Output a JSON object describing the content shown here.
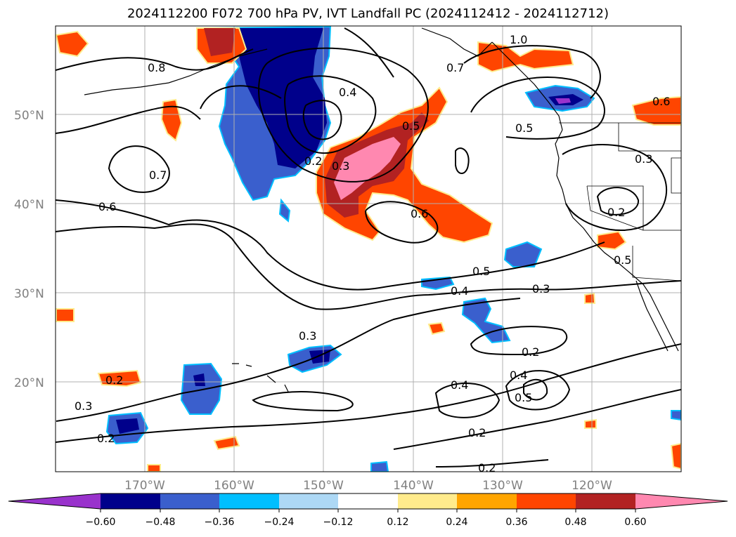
{
  "title": "2024112200 F072 700 hPa PV, IVT Landfall PC (2024112412 - 2024112712)",
  "map": {
    "projection": "cylindrical",
    "lon_range": [
      -180,
      -110
    ],
    "lat_range": [
      10,
      60
    ],
    "lat_ticks": [
      {
        "value": 20,
        "label": "20°N"
      },
      {
        "value": 30,
        "label": "30°N"
      },
      {
        "value": 40,
        "label": "40°N"
      },
      {
        "value": 50,
        "label": "50°N"
      }
    ],
    "lon_ticks": [
      {
        "value": -170,
        "label": "170°W"
      },
      {
        "value": -160,
        "label": "160°W"
      },
      {
        "value": -150,
        "label": "150°W"
      },
      {
        "value": -140,
        "label": "140°W"
      },
      {
        "value": -130,
        "label": "130°W"
      },
      {
        "value": -120,
        "label": "120°W"
      }
    ],
    "gridlines": true,
    "contour_labels": [
      "0.8",
      "0.7",
      "0.6",
      "0.4",
      "0.3",
      "0.2",
      "0.5",
      "0.6",
      "1.0",
      "0.7",
      "0.5",
      "0.3",
      "0.2",
      "0.5",
      "0.4",
      "0.3",
      "0.5",
      "0.2",
      "0.4",
      "0.5",
      "0.2",
      "0.3",
      "0.2",
      "0.2",
      "0.3",
      "0.4",
      "0.2",
      "0.6"
    ]
  },
  "colorbar": {
    "ticks": [
      "−0.60",
      "−0.48",
      "−0.36",
      "−0.24",
      "−0.12",
      "0.12",
      "0.24",
      "0.36",
      "0.48",
      "0.60"
    ],
    "colors": {
      "under": "#9932cc",
      "bins": [
        "#00008b",
        "#3a5fcd",
        "#00bfff",
        "#add8f5",
        "#ffffff",
        "#ffeb8c",
        "#ffa500",
        "#ff4500",
        "#b22222",
        "#ff88b0"
      ],
      "over": "#ff88b0"
    },
    "extend": "both"
  }
}
